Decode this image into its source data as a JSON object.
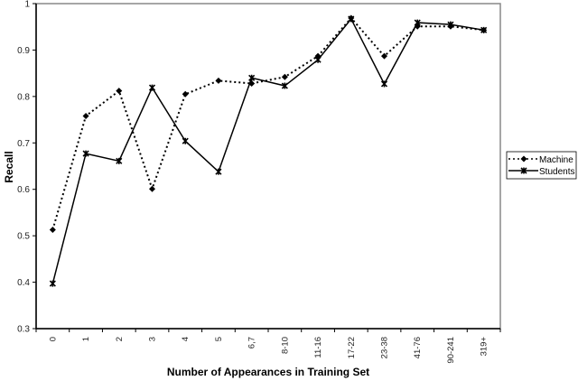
{
  "chart_data": {
    "type": "line",
    "title": "",
    "xlabel": "Number of Appearances in Training Set",
    "ylabel": "Recall",
    "ylim": [
      0.3,
      1.0
    ],
    "yticks": [
      "0.3",
      "0.4",
      "0.5",
      "0.6",
      "0.7",
      "0.8",
      "0.9",
      "1"
    ],
    "grid": false,
    "legend_position": "right",
    "categories": [
      "0",
      "1",
      "2",
      "3",
      "4",
      "5",
      "6,7",
      "8-10",
      "11-16",
      "17-22",
      "23-38",
      "41-76",
      "90-241",
      "319+"
    ],
    "series": [
      {
        "name": "Machine",
        "style": "dotted",
        "marker": "diamond",
        "values": [
          0.513,
          0.758,
          0.812,
          0.601,
          0.805,
          0.834,
          0.828,
          0.842,
          0.887,
          0.969,
          0.887,
          0.951,
          0.951,
          0.943
        ]
      },
      {
        "name": "Students",
        "style": "solid",
        "marker": "star",
        "values": [
          0.397,
          0.677,
          0.661,
          0.819,
          0.704,
          0.638,
          0.84,
          0.823,
          0.879,
          0.967,
          0.827,
          0.959,
          0.955,
          0.943
        ]
      }
    ]
  },
  "colors": {
    "line": "#000000",
    "frame": "#888888",
    "axis": "#000000"
  }
}
